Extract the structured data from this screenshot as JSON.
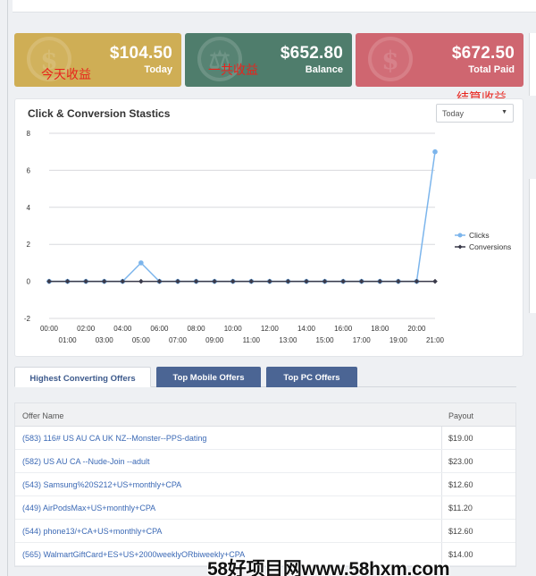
{
  "stats": [
    {
      "amount": "$104.50",
      "label": "Today",
      "annotation": "今天收益",
      "color": "#cfae55"
    },
    {
      "amount": "$652.80",
      "label": "Balance",
      "annotation": "一共收益",
      "color": "#4f7d6c"
    },
    {
      "amount": "$672.50",
      "label": "Total Paid",
      "annotation": "结算收益",
      "color": "#cf6670"
    }
  ],
  "chart_card": {
    "title": "Click & Conversion Stastics",
    "range_select": {
      "value": "Today"
    }
  },
  "chart_data": {
    "type": "line",
    "x": [
      "00:00",
      "01:00",
      "02:00",
      "03:00",
      "04:00",
      "05:00",
      "06:00",
      "07:00",
      "08:00",
      "09:00",
      "10:00",
      "11:00",
      "12:00",
      "13:00",
      "14:00",
      "15:00",
      "16:00",
      "17:00",
      "18:00",
      "19:00",
      "20:00",
      "21:00"
    ],
    "series": [
      {
        "name": "Clicks",
        "color": "#7cb5ec",
        "values": [
          0,
          0,
          0,
          0,
          0,
          1,
          0,
          0,
          0,
          0,
          0,
          0,
          0,
          0,
          0,
          0,
          0,
          0,
          0,
          0,
          0,
          7
        ]
      },
      {
        "name": "Conversions",
        "color": "#3a3a4a",
        "values": [
          0,
          0,
          0,
          0,
          0,
          0,
          0,
          0,
          0,
          0,
          0,
          0,
          0,
          0,
          0,
          0,
          0,
          0,
          0,
          0,
          0,
          0
        ]
      }
    ],
    "yticks": [
      -2,
      0,
      2,
      4,
      6,
      8
    ],
    "ylim": [
      -2,
      8
    ],
    "grid": true,
    "legend": "right"
  },
  "tabs": [
    {
      "label": "Highest Converting Offers",
      "active": true
    },
    {
      "label": "Top Mobile Offers",
      "active": false
    },
    {
      "label": "Top PC Offers",
      "active": false
    }
  ],
  "offers_table": {
    "columns": [
      "Offer Name",
      "Payout"
    ],
    "rows": [
      {
        "name": "(583) 116# US AU CA UK NZ--Monster--PPS-dating",
        "payout": "$19.00"
      },
      {
        "name": "(582) US AU CA --Nude-Join --adult",
        "payout": "$23.00"
      },
      {
        "name": "(543) Samsung%20S212+US+monthly+CPA",
        "payout": "$12.60"
      },
      {
        "name": "(449) AirPodsMax+US+monthly+CPA",
        "payout": "$11.20"
      },
      {
        "name": "(544) phone13/+CA+US+monthly+CPA",
        "payout": "$12.60"
      },
      {
        "name": "(565) WalmartGiftCard+ES+US+2000weeklyORbiweekly+CPA",
        "payout": "$14.00"
      }
    ]
  },
  "watermark": "58好项目网www.58hxm.com"
}
